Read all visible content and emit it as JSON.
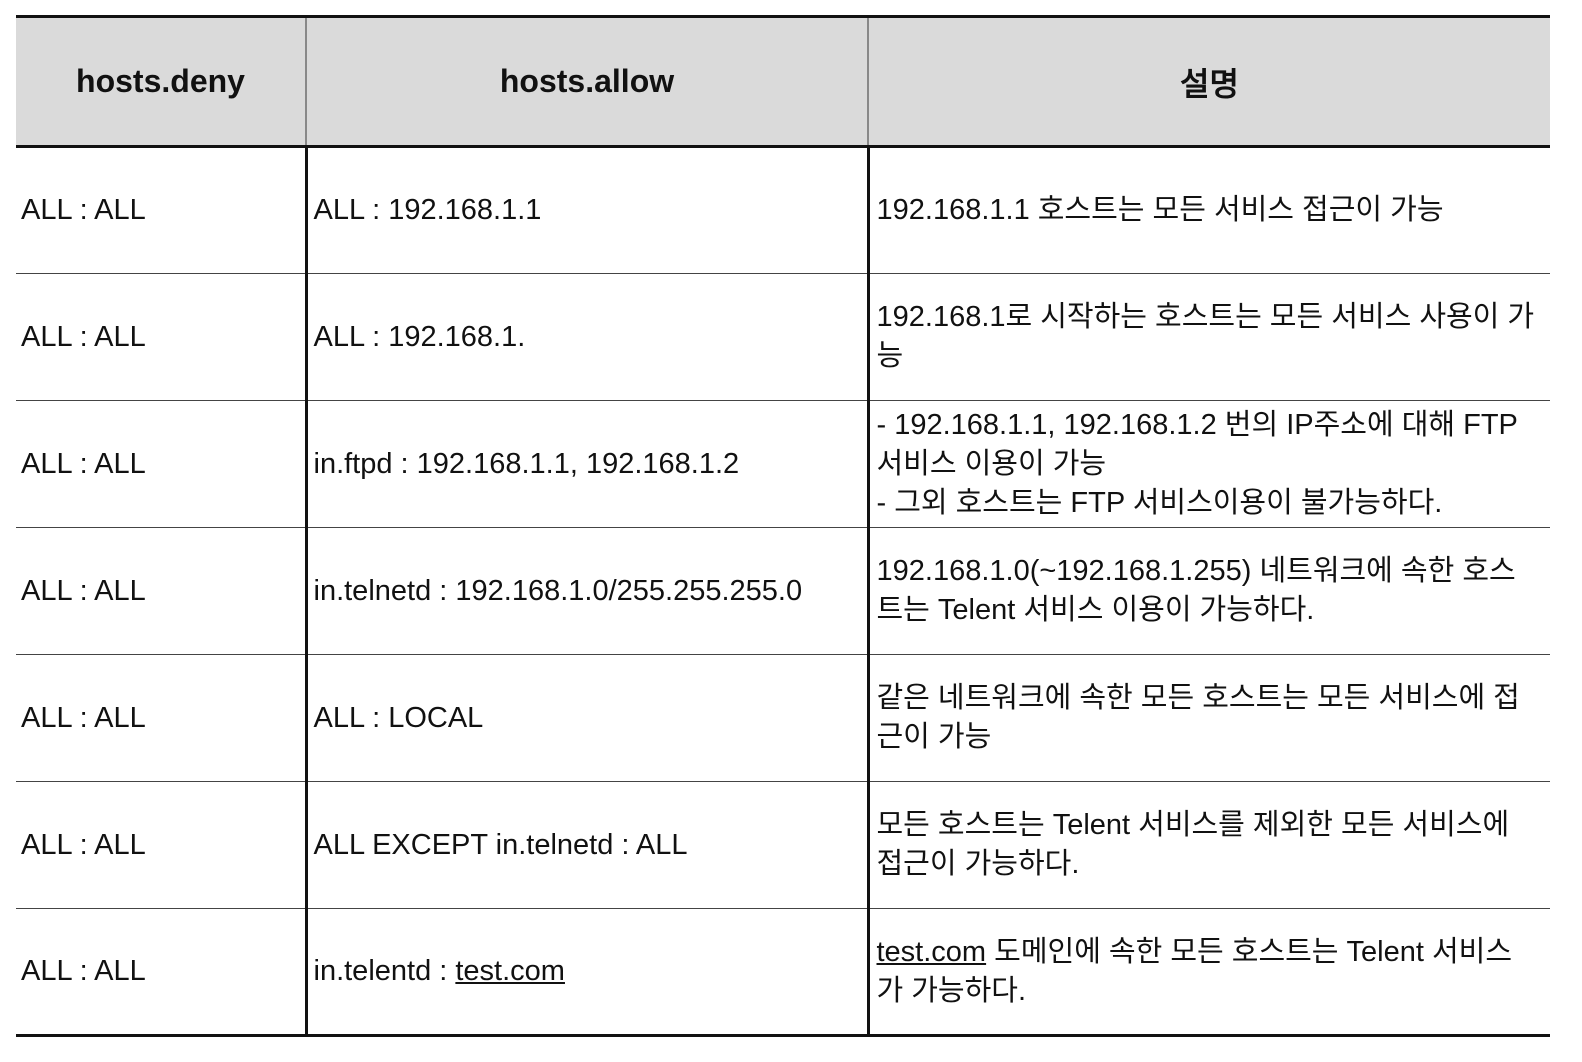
{
  "table": {
    "headers": [
      "hosts.deny",
      "hosts.allow",
      "설명"
    ],
    "rows": [
      {
        "deny": "ALL : ALL",
        "allow": "ALL : 192.168.1.1",
        "allow_link": "",
        "desc_link": "",
        "desc": [
          "192.168.1.1 호스트는 모든 서비스 접근이 가능"
        ]
      },
      {
        "deny": "ALL : ALL",
        "allow": "ALL : 192.168.1.",
        "allow_link": "",
        "desc_link": "",
        "desc": [
          "192.168.1로 시작하는 호스트는 모든 서비스 사용이 가능"
        ]
      },
      {
        "deny": "ALL : ALL",
        "allow": "in.ftpd : 192.168.1.1, 192.168.1.2",
        "allow_link": "",
        "desc_link": "",
        "desc": [
          "- 192.168.1.1, 192.168.1.2 번의 IP주소에 대해 FTP 서비스 이용이 가능",
          "- 그외 호스트는 FTP 서비스이용이 불가능하다."
        ]
      },
      {
        "deny": "ALL : ALL",
        "allow": "in.telnetd : 192.168.1.0/255.255.255.0",
        "allow_link": "",
        "desc_link": "",
        "desc": [
          "192.168.1.0(~192.168.1.255) 네트워크에 속한 호스트는 Telent 서비스 이용이 가능하다."
        ]
      },
      {
        "deny": "ALL : ALL",
        "allow": "ALL : LOCAL",
        "allow_link": "",
        "desc_link": "",
        "desc": [
          "같은 네트워크에 속한 모든 호스트는 모든 서비스에 접근이 가능"
        ]
      },
      {
        "deny": "ALL : ALL",
        "allow": "ALL EXCEPT in.telnetd : ALL",
        "allow_link": "",
        "desc_link": "",
        "desc": [
          "모든 호스트는 Telent 서비스를 제외한 모든 서비스에 접근이 가능하다."
        ]
      },
      {
        "deny": "ALL : ALL",
        "allow": "in.telentd : ",
        "allow_link": "test.com",
        "desc_link": "test.com",
        "desc": [
          " 도메인에 속한 모든 호스트는 Telent 서비스가 가능하다."
        ]
      }
    ]
  }
}
